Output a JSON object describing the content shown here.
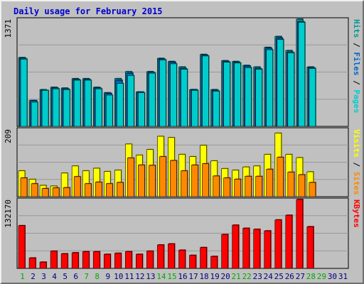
{
  "chart_data": {
    "type": "bar",
    "title": "Daily usage for February 2015",
    "categories": [
      "1",
      "2",
      "3",
      "4",
      "5",
      "6",
      "7",
      "8",
      "9",
      "10",
      "11",
      "12",
      "13",
      "14",
      "15",
      "16",
      "17",
      "18",
      "19",
      "20",
      "21",
      "22",
      "23",
      "24",
      "25",
      "26",
      "27",
      "28",
      "29",
      "30",
      "31"
    ],
    "weekend_days": [
      "1",
      "7",
      "8",
      "14",
      "15",
      "21",
      "22",
      "28",
      "29"
    ],
    "colors": {
      "title": "#0000cc",
      "hits": "#009999",
      "files": "#0066cc",
      "pages": "#00cccc",
      "visits": "#ffff00",
      "sites": "#ff8800",
      "kbytes": "#ff0000",
      "weekday_label": "#000080",
      "weekend_label": "#00aa00",
      "separator": "#000000"
    },
    "panels": [
      {
        "id": "hits-files-pages",
        "ymax_label": "1371",
        "ylim": [
          0,
          1371
        ],
        "side_labels": [
          {
            "text": "Pages",
            "color": "#00cccc"
          },
          {
            "text": "Files",
            "color": "#0066cc"
          },
          {
            "text": "Hits",
            "color": "#009999"
          }
        ],
        "series": [
          {
            "name": "Hits",
            "values": [
              880,
              330,
              470,
              500,
              490,
              610,
              610,
              500,
              430,
              610,
              700,
              440,
              700,
              870,
              830,
              760,
              470,
              920,
              470,
              840,
              830,
              780,
              760,
              1010,
              1150,
              970,
              1371,
              760,
              0,
              0,
              0
            ]
          },
          {
            "name": "Files",
            "values": [
              870,
              330,
              460,
              490,
              480,
              600,
              600,
              490,
              420,
              590,
              680,
              440,
              690,
              860,
              820,
              740,
              470,
              910,
              460,
              830,
              820,
              770,
              740,
              1000,
              1130,
              950,
              1340,
              750,
              0,
              0,
              0
            ]
          },
          {
            "name": "Pages",
            "values": [
              860,
              310,
              460,
              480,
              470,
              590,
              590,
              480,
              400,
              550,
              650,
              430,
              680,
              850,
              800,
              730,
              460,
              900,
              450,
              820,
              810,
              750,
              730,
              980,
              1110,
              940,
              1330,
              740,
              0,
              0,
              0
            ]
          }
        ]
      },
      {
        "id": "visits-sites",
        "ymax_label": "209",
        "ylim": [
          0,
          209
        ],
        "side_labels": [
          {
            "text": "Sites",
            "color": "#ff8800"
          },
          {
            "text": "Visits",
            "color": "#ffff00"
          }
        ],
        "series": [
          {
            "name": "Visits",
            "values": [
              80,
              54,
              35,
              33,
              73,
              95,
              80,
              88,
              78,
              82,
              163,
              129,
              146,
              187,
              183,
              131,
              124,
              159,
              111,
              87,
              82,
              92,
              95,
              131,
              197,
              131,
              121,
              77,
              0,
              0,
              0
            ]
          },
          {
            "name": "Sites",
            "values": [
              58,
              40,
              25,
              27,
              28,
              62,
              40,
              45,
              40,
              44,
              120,
              98,
              97,
              124,
              112,
              80,
              98,
              102,
              64,
              58,
              54,
              63,
              63,
              85,
              122,
              76,
              68,
              44,
              0,
              0,
              0
            ]
          }
        ]
      },
      {
        "id": "kbytes",
        "ymax_label": "132170",
        "ylim": [
          0,
          132170
        ],
        "side_labels": [
          {
            "text": "KBytes",
            "color": "#ff0000"
          }
        ],
        "series": [
          {
            "name": "KBytes",
            "values": [
              82000,
              20000,
              12000,
              33000,
              28000,
              30000,
              32000,
              32000,
              27000,
              29000,
              32000,
              27000,
              33000,
              45000,
              47000,
              35000,
              25000,
              40000,
              23000,
              65000,
              83000,
              77000,
              75000,
              72000,
              93000,
              102000,
              132170,
              80000,
              0,
              0,
              0
            ]
          }
        ]
      }
    ]
  }
}
